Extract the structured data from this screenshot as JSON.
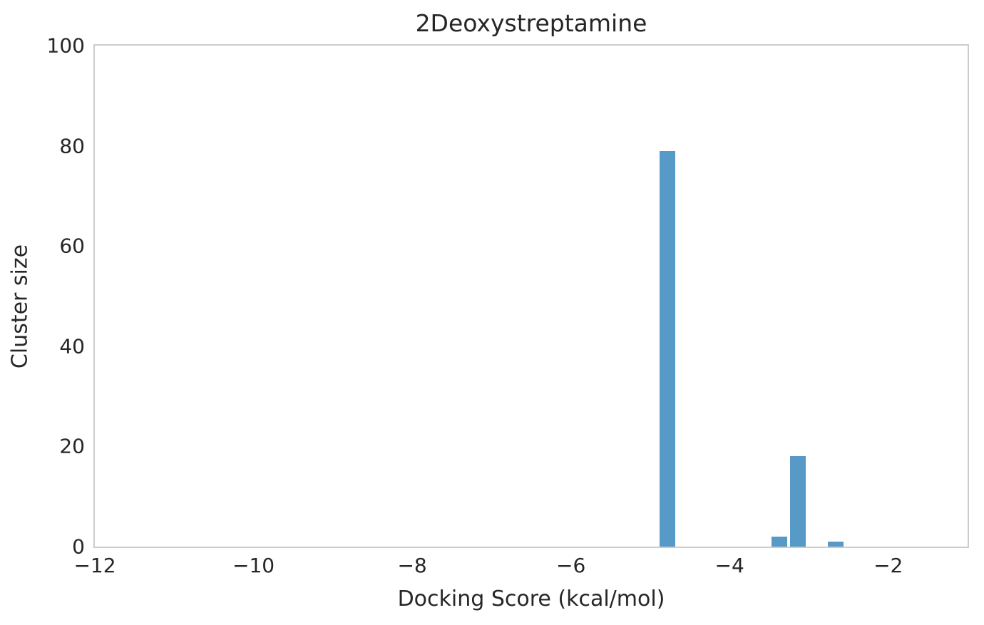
{
  "chart_data": {
    "type": "bar",
    "subtype": "histogram",
    "title": "2Deoxystreptamine",
    "xlabel": "Docking Score (kcal/mol)",
    "ylabel": "Cluster size",
    "xlim": [
      -12,
      -1
    ],
    "ylim": [
      0,
      100
    ],
    "x_ticks": [
      {
        "value": -12,
        "label": "−12"
      },
      {
        "value": -10,
        "label": "−10"
      },
      {
        "value": -8,
        "label": "−8"
      },
      {
        "value": -6,
        "label": "−6"
      },
      {
        "value": -4,
        "label": "−4"
      },
      {
        "value": -2,
        "label": "−2"
      }
    ],
    "y_ticks": [
      {
        "value": 0,
        "label": "0"
      },
      {
        "value": 20,
        "label": "20"
      },
      {
        "value": 40,
        "label": "40"
      },
      {
        "value": 60,
        "label": "60"
      },
      {
        "value": 80,
        "label": "80"
      },
      {
        "value": 100,
        "label": "100"
      }
    ],
    "bars": [
      {
        "x": -4.78,
        "height": 79
      },
      {
        "x": -3.37,
        "height": 2
      },
      {
        "x": -3.14,
        "height": 18
      },
      {
        "x": -2.66,
        "height": 1
      }
    ],
    "bar_width_x": 0.21,
    "grid": false,
    "legend": "none",
    "colors": {
      "bar": "#5799c7",
      "spine": "#cccccc",
      "text": "#262626",
      "background": "#ffffff"
    }
  }
}
